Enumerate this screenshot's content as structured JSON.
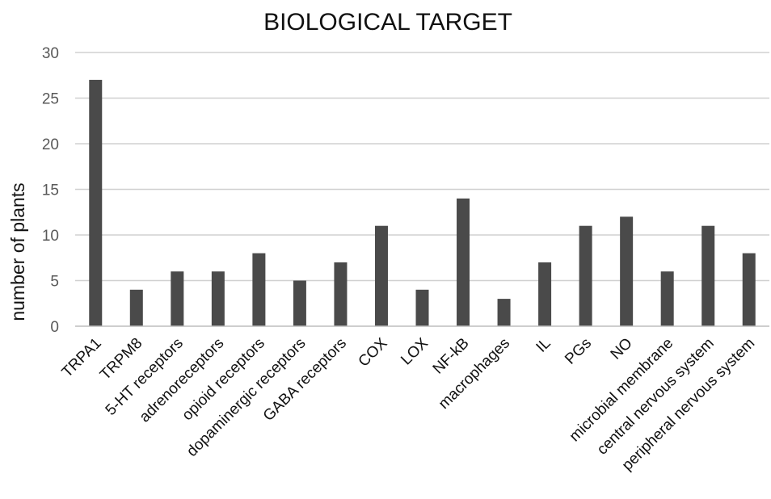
{
  "chart_data": {
    "type": "bar",
    "title": "BIOLOGICAL TARGET",
    "xlabel": "",
    "ylabel": "number of plants",
    "ylim": [
      0,
      30
    ],
    "yticks": [
      0,
      5,
      10,
      15,
      20,
      25,
      30
    ],
    "grid": true,
    "legend": "none",
    "bar_color": "#4a4a4a",
    "categories": [
      "TRPA1",
      "TRPM8",
      "5-HT receptors",
      "adrenoreceptors",
      "opioid receptors",
      "dopaminergic receptors",
      "GABA receptors",
      "COX",
      "LOX",
      "NF-kB",
      "macrophages",
      "IL",
      "PGs",
      "NO",
      "microbial membrane",
      "central nervous system",
      "peripheral nervous system"
    ],
    "values": [
      27,
      4,
      6,
      6,
      8,
      5,
      7,
      11,
      4,
      14,
      3,
      7,
      11,
      12,
      6,
      11,
      8
    ]
  }
}
